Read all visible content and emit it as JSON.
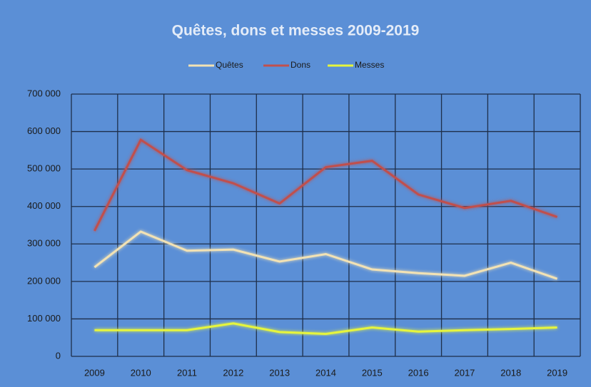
{
  "chart_data": {
    "type": "line",
    "title": "Quêtes, dons et messes 2009-2019",
    "categories": [
      "2009",
      "2010",
      "2011",
      "2012",
      "2013",
      "2014",
      "2015",
      "2016",
      "2017",
      "2018",
      "2019"
    ],
    "series": [
      {
        "name": "Quêtes",
        "color": "#f2e2b4",
        "values": [
          238000,
          333000,
          282000,
          285000,
          253000,
          273000,
          232000,
          222000,
          215000,
          250000,
          207000
        ]
      },
      {
        "name": "Dons",
        "color": "#c0504d",
        "values": [
          335000,
          578000,
          497000,
          462000,
          408000,
          505000,
          522000,
          432000,
          396000,
          415000,
          372000
        ]
      },
      {
        "name": "Messes",
        "color": "#e6f53c",
        "values": [
          70000,
          70000,
          70000,
          88000,
          65000,
          60000,
          77000,
          66000,
          70000,
          73000,
          77000
        ]
      }
    ],
    "ylim": [
      0,
      700000
    ],
    "yticks": [
      0,
      {
        "value": 100000,
        "label": "100 000"
      },
      {
        "value": 200000,
        "label": "200 000"
      },
      {
        "value": 300000,
        "label": "300 000"
      },
      {
        "value": 400000,
        "label": "400 000"
      },
      {
        "value": 500000,
        "label": "500 000"
      },
      {
        "value": 600000,
        "label": "600 000"
      },
      {
        "value": 700000,
        "label": "700 000"
      }
    ],
    "grid": true,
    "legend": "top"
  }
}
